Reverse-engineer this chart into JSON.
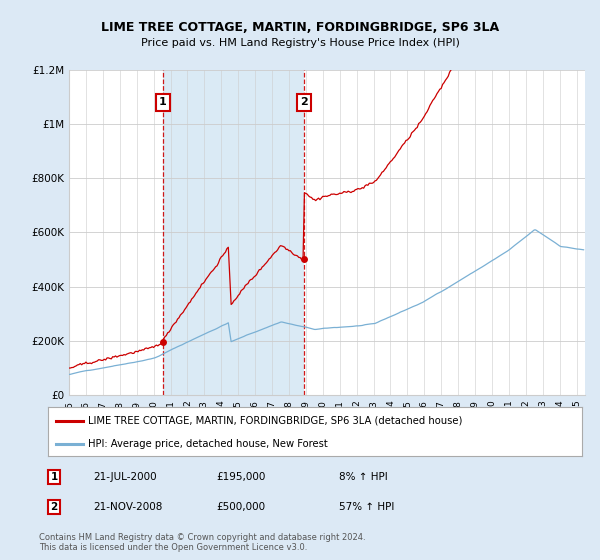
{
  "title": "LIME TREE COTTAGE, MARTIN, FORDINGBRIDGE, SP6 3LA",
  "subtitle": "Price paid vs. HM Land Registry's House Price Index (HPI)",
  "property_label": "LIME TREE COTTAGE, MARTIN, FORDINGBRIDGE, SP6 3LA (detached house)",
  "hpi_label": "HPI: Average price, detached house, New Forest",
  "annotation1": {
    "number": "1",
    "date": "21-JUL-2000",
    "price": "£195,000",
    "hpi": "8% ↑ HPI",
    "x_year": 2000.54
  },
  "annotation2": {
    "number": "2",
    "date": "21-NOV-2008",
    "price": "£500,000",
    "hpi": "57% ↑ HPI",
    "x_year": 2008.87
  },
  "sale1_value": 195000,
  "sale2_value": 500000,
  "footnote1": "Contains HM Land Registry data © Crown copyright and database right 2024.",
  "footnote2": "This data is licensed under the Open Government Licence v3.0.",
  "property_color": "#cc0000",
  "hpi_color": "#7ab0d4",
  "shade_color": "#daeaf5",
  "background_color": "#dce9f5",
  "plot_bg_color": "#ffffff",
  "ylim_max": 1200000,
  "xlim_start": 1995.0,
  "xlim_end": 2025.5,
  "yticks": [
    0,
    200000,
    400000,
    600000,
    800000,
    1000000,
    1200000
  ],
  "ytick_labels": [
    "£0",
    "£200K",
    "£400K",
    "£600K",
    "£800K",
    "£1M",
    "£1.2M"
  ],
  "xticks": [
    1995,
    1996,
    1997,
    1998,
    1999,
    2000,
    2001,
    2002,
    2003,
    2004,
    2005,
    2006,
    2007,
    2008,
    2009,
    2010,
    2011,
    2012,
    2013,
    2014,
    2015,
    2016,
    2017,
    2018,
    2019,
    2020,
    2021,
    2022,
    2023,
    2024,
    2025
  ]
}
